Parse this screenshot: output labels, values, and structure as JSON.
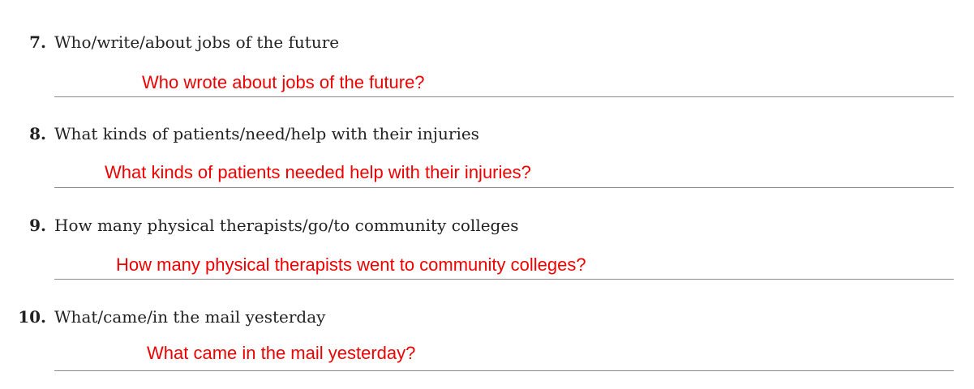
{
  "questions": [
    {
      "number": "7.",
      "prompt": "Who/write/about jobs of the future",
      "answer": "Who wrote about jobs of the future?"
    },
    {
      "number": "8.",
      "prompt": "What kinds of patients/need/help with their injuries",
      "answer": "What kinds of patients needed help with their injuries?"
    },
    {
      "number": "9.",
      "prompt": "How many physical therapists/go/to community colleges",
      "answer": "How many physical therapists went to community colleges?"
    },
    {
      "number": "10.",
      "prompt": "What/came/in the mail yesterday",
      "answer": "What came in the mail yesterday?"
    }
  ]
}
